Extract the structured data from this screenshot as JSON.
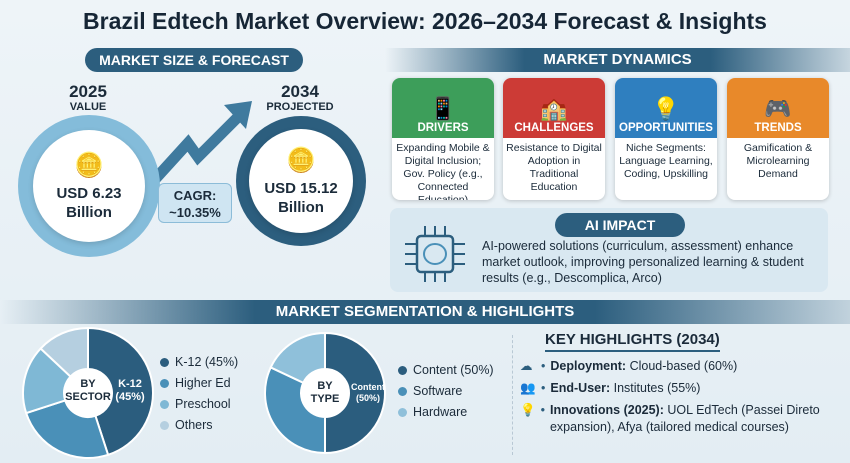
{
  "title": "Brazil Edtech Market Overview: 2026–2034 Forecast & Insights",
  "market_size": {
    "header": "MARKET SIZE & FORECAST",
    "start": {
      "year": "2025",
      "label": "VALUE",
      "value_line1": "USD 6.23",
      "value_line2": "Billion",
      "icon": "coins-icon"
    },
    "end": {
      "year": "2034",
      "label": "PROJECTED",
      "value_line1": "USD 15.12",
      "value_line2": "Billion",
      "icon": "coins-icon"
    },
    "cagr_label": "CAGR:",
    "cagr_value": "~10.35%"
  },
  "dynamics": {
    "header": "MARKET DYNAMICS",
    "cards": [
      {
        "label": "DRIVERS",
        "text": "Expanding Mobile & Digital Inclusion; Gov. Policy (e.g., Connected Education)",
        "color": "#3d9e5a",
        "icon": "mobile-phone-icon"
      },
      {
        "label": "CHALLENGES",
        "text": "Resistance to Digital Adoption in Traditional Education",
        "color": "#cc3b36",
        "icon": "school-lock-icon"
      },
      {
        "label": "OPPORTUNITIES",
        "text": "Niche Segments: Language Learning, Coding, Upskilling",
        "color": "#2f7fbf",
        "icon": "lightbulb-gear-icon"
      },
      {
        "label": "TRENDS",
        "text": "Gamification & Microlearning Demand",
        "color": "#e8892a",
        "icon": "gamepad-icon"
      }
    ]
  },
  "ai_impact": {
    "header": "AI IMPACT",
    "text": "AI-powered solutions (curriculum, assessment) enhance market outlook, improving personalized learning & student results (e.g., Descomplica, Arco)",
    "icon": "ai-chip-brain-icon"
  },
  "segmentation": {
    "header": "MARKET SEGMENTATION & HIGHLIGHTS",
    "key_highlights": {
      "title": "KEY HIGHLIGHTS (2034)",
      "items": [
        {
          "bold": "Deployment:",
          "text": " Cloud-based (60%)",
          "icon": "cloud-icon"
        },
        {
          "bold": "End-User:",
          "text": " Institutes (55%)",
          "icon": "users-hand-icon"
        },
        {
          "bold": "Innovations (2025):",
          "text": " UOL EdTech (Passei Direto expansion), Afya (tailored medical courses)",
          "icon": "lightbulb-icon"
        }
      ]
    }
  },
  "chart_data": [
    {
      "type": "pie",
      "center_label_1": "BY",
      "center_label_2": "SECTOR",
      "slice_label_1": "K-12",
      "slice_label_2": "(45%)",
      "categories": [
        "K-12 (45%)",
        "Higher Ed",
        "Preschool",
        "Others"
      ],
      "values": [
        45,
        25,
        17,
        13
      ],
      "colors": [
        "#2b5d7e",
        "#4a90b8",
        "#7fb8d5",
        "#b5cfe0"
      ]
    },
    {
      "type": "pie",
      "center_label_1": "BY",
      "center_label_2": "TYPE",
      "slice_label_1": "Content",
      "slice_label_2": "(50%)",
      "categories": [
        "Content (50%)",
        "Software",
        "Hardware"
      ],
      "values": [
        50,
        32,
        18
      ],
      "colors": [
        "#2b5d7e",
        "#4a90b8",
        "#8fc0da"
      ]
    }
  ]
}
